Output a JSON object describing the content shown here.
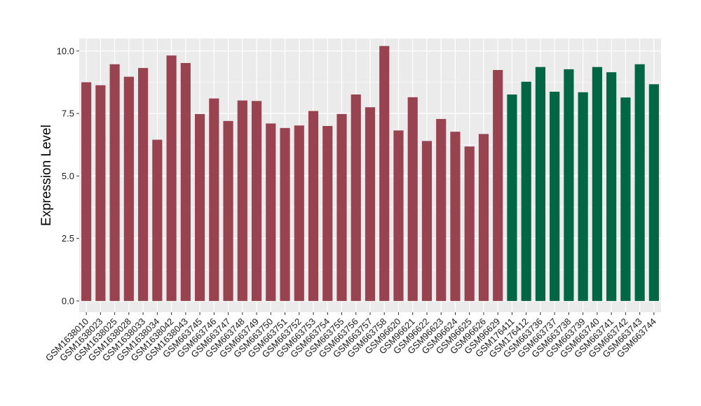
{
  "chart_data": {
    "type": "bar",
    "title": "",
    "xlabel": "",
    "ylabel": "Expression Level",
    "ylim": [
      -0.45,
      10.5
    ],
    "yticks": [
      0.0,
      2.5,
      5.0,
      7.5,
      10.0
    ],
    "ytick_labels": [
      "0.0",
      "2.5",
      "5.0",
      "7.5",
      "10.0"
    ],
    "grid": true,
    "legend": "none",
    "panel_background": "#ebebeb",
    "grid_color": "#ffffff",
    "series_colors": {
      "group1": "#9a4350",
      "group2": "#006644"
    },
    "categories": [
      "GSM1638010",
      "GSM1638023",
      "GSM1638025",
      "GSM1638028",
      "GSM1638033",
      "GSM1638034",
      "GSM1638042",
      "GSM1638043",
      "GSM663745",
      "GSM663746",
      "GSM663747",
      "GSM663748",
      "GSM663749",
      "GSM663750",
      "GSM663751",
      "GSM663752",
      "GSM663753",
      "GSM663754",
      "GSM663755",
      "GSM663756",
      "GSM663757",
      "GSM663758",
      "GSM96620",
      "GSM96621",
      "GSM96622",
      "GSM96623",
      "GSM96624",
      "GSM96625",
      "GSM96626",
      "GSM96629",
      "GSM176411",
      "GSM176412",
      "GSM663736",
      "GSM663737",
      "GSM663738",
      "GSM663739",
      "GSM663740",
      "GSM663741",
      "GSM663742",
      "GSM663743",
      "GSM663744"
    ],
    "values": [
      8.75,
      8.63,
      9.47,
      8.97,
      9.32,
      6.45,
      9.82,
      9.52,
      7.48,
      8.1,
      7.2,
      8.02,
      8.0,
      7.1,
      6.92,
      7.02,
      7.6,
      7.0,
      7.48,
      8.26,
      7.75,
      10.2,
      6.82,
      8.15,
      6.4,
      7.28,
      6.77,
      6.18,
      6.68,
      9.24,
      8.26,
      8.77,
      9.36,
      8.37,
      9.27,
      8.35,
      9.36,
      9.15,
      8.14,
      9.47,
      8.67
    ],
    "groups": [
      "group1",
      "group1",
      "group1",
      "group1",
      "group1",
      "group1",
      "group1",
      "group1",
      "group1",
      "group1",
      "group1",
      "group1",
      "group1",
      "group1",
      "group1",
      "group1",
      "group1",
      "group1",
      "group1",
      "group1",
      "group1",
      "group1",
      "group1",
      "group1",
      "group1",
      "group1",
      "group1",
      "group1",
      "group1",
      "group1",
      "group2",
      "group2",
      "group2",
      "group2",
      "group2",
      "group2",
      "group2",
      "group2",
      "group2",
      "group2",
      "group2"
    ]
  }
}
